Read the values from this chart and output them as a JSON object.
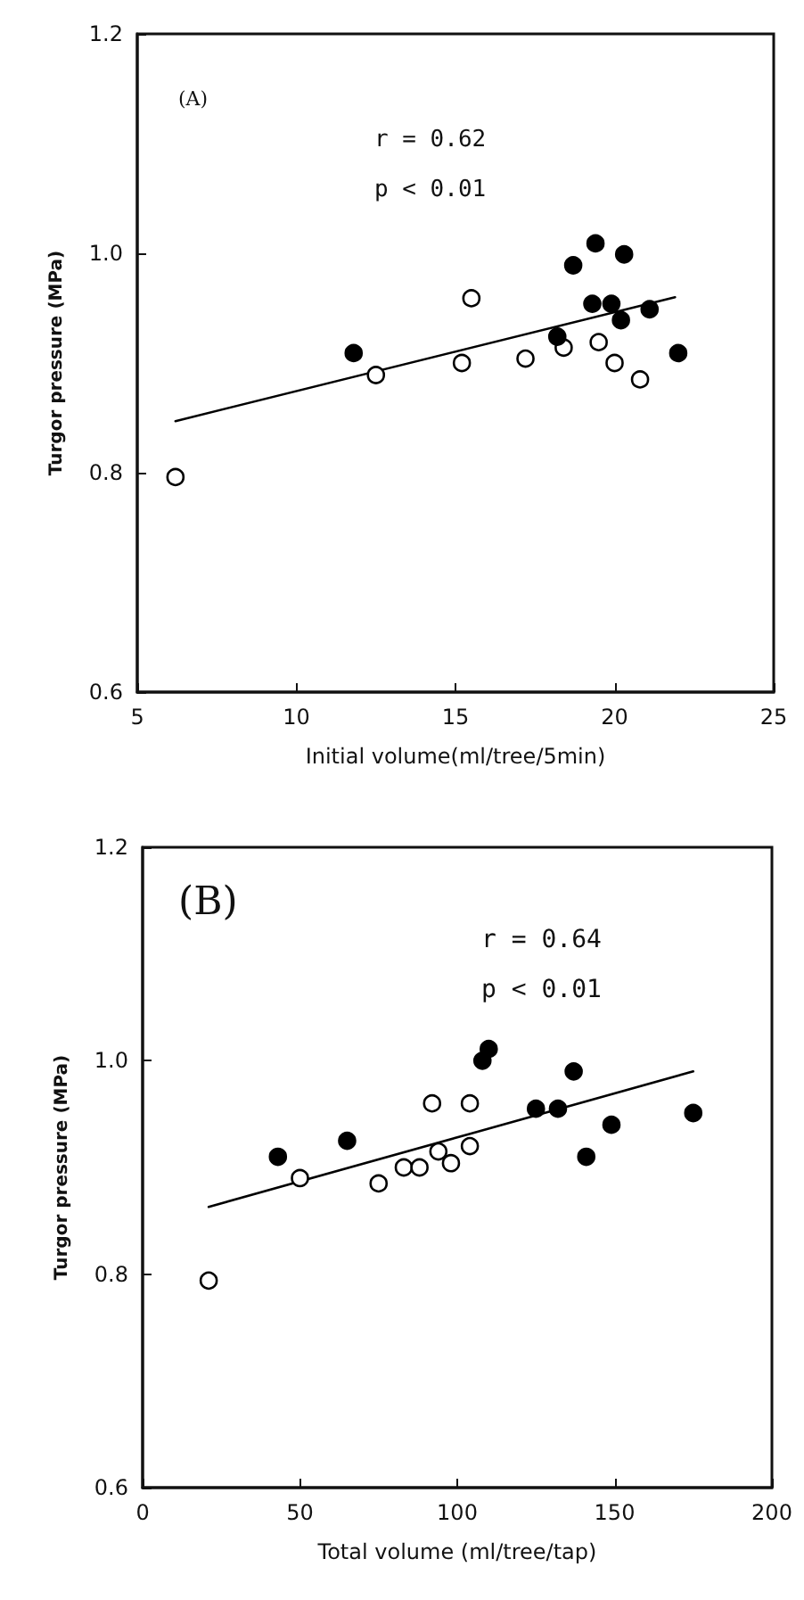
{
  "chart_data": [
    {
      "type": "scatter",
      "xlabel": "Initial volume(ml/tree/5min)",
      "ylabel": "Turgor pressure (MPa)",
      "annotations": [
        "(A)",
        "r = 0.62",
        "p < 0.01"
      ],
      "xlim": [
        5,
        25
      ],
      "xticks": [
        5,
        10,
        15,
        20,
        25
      ],
      "ylim": [
        0.6,
        1.2
      ],
      "yticks": [
        0.6,
        0.8,
        {
          "value": 1.0,
          "label": "1.0"
        },
        1.2
      ],
      "marker": "circle",
      "series": [
        {
          "color": "#ffffff",
          "x": [
            6.2,
            12.5,
            15.5,
            15.2,
            17.2,
            18.4,
            19.5,
            20.0,
            20.8
          ],
          "values": [
            0.796,
            0.889,
            0.959,
            0.9,
            0.904,
            0.914,
            0.919,
            0.9,
            0.885
          ]
        },
        {
          "color": "#000000",
          "x": [
            11.8,
            18.2,
            18.7,
            19.4,
            20.3,
            19.3,
            19.9,
            20.2,
            21.1,
            22.0
          ],
          "values": [
            0.909,
            0.924,
            0.989,
            1.009,
            0.999,
            0.954,
            0.954,
            0.939,
            0.949,
            0.909
          ]
        },
        {
          "type": "line",
          "marker": "none",
          "color": "#000000",
          "x": [
            6.2,
            21.9
          ],
          "values": [
            0.847,
            0.96
          ]
        }
      ]
    },
    {
      "type": "scatter",
      "xlabel": "Total volume (ml/tree/tap)",
      "ylabel": "Turgor pressure (MPa)",
      "annotations": [
        "(B)",
        "r = 0.64",
        "p < 0.01"
      ],
      "xlim": [
        0,
        200
      ],
      "xticks": [
        0,
        50,
        100,
        150,
        200
      ],
      "ylim": [
        0.6,
        1.2
      ],
      "yticks": [
        0.6,
        0.8,
        {
          "value": 1.0,
          "label": "1.0"
        },
        1.2
      ],
      "marker": "circle",
      "series": [
        {
          "color": "#ffffff",
          "x": [
            21,
            50,
            75,
            83,
            88,
            92,
            94,
            98,
            104,
            104
          ],
          "values": [
            0.794,
            0.89,
            0.885,
            0.9,
            0.9,
            0.96,
            0.915,
            0.904,
            0.96,
            0.92
          ]
        },
        {
          "color": "#000000",
          "x": [
            43,
            65,
            108,
            110,
            125,
            132,
            137,
            141,
            149,
            175
          ],
          "values": [
            0.91,
            0.925,
            1.0,
            1.011,
            0.955,
            0.955,
            0.99,
            0.91,
            0.94,
            0.951
          ]
        },
        {
          "type": "line",
          "marker": "none",
          "color": "#000000",
          "x": [
            21,
            175
          ],
          "values": [
            0.863,
            0.99
          ]
        }
      ]
    }
  ]
}
